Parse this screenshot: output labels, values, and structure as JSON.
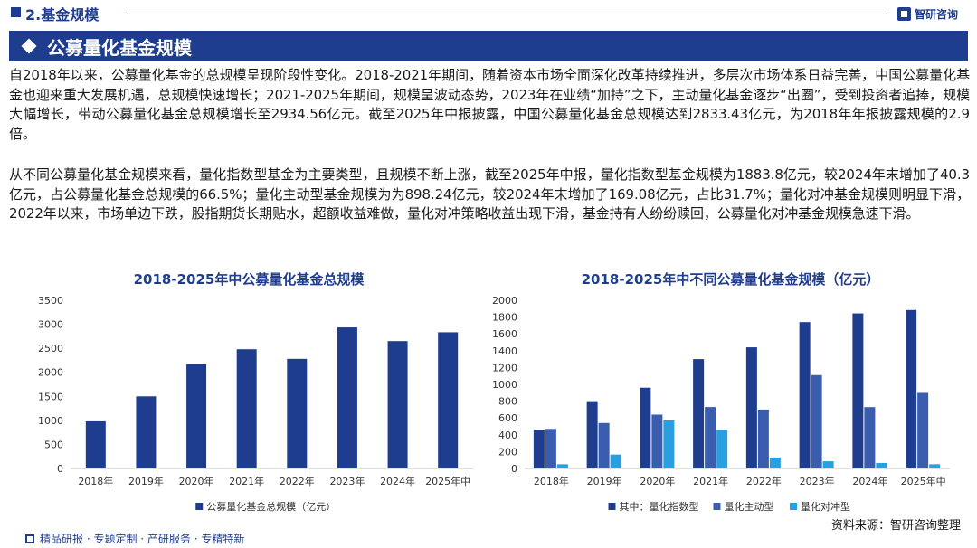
{
  "header": {
    "section_title": "2.基金规模",
    "brand_name": "智研咨询",
    "icons": {
      "brand": "brand-logo-icon",
      "section": "square-bullet-icon"
    }
  },
  "banner": {
    "title": "公募量化基金规模",
    "icon": "diamond-icon"
  },
  "paragraphs": [
    "自2018年以来，公募量化基金的总规模呈现阶段性变化。2018-2021年期间，随着资本市场全面深化改革持续推进，多层次市场体系日益完善，中国公募量化基金也迎来重大发展机遇，总规模快速增长；2021-2025年期间，规模呈波动态势，2023年在业绩“加持”之下，主动量化基金逐步“出圈”，受到投资者追捧，规模大幅增长，带动公募量化基金总规模增长至2934.56亿元。截至2025年中报披露，中国公募量化基金总规模达到2833.43亿元，为2018年年报披露规模的2.9倍。",
    "从不同公募量化基金规模来看，量化指数型基金为主要类型，且规模不断上涨，截至2025年中报，量化指数型基金规模为1883.8亿元，较2024年末增加了40.3亿元，占公募量化基金总规模的66.5%；量化主动型基金规模为为898.24亿元，较2024年末增加了169.08亿元，占比31.7%；量化对冲基金规模则明显下滑，2022年以来，市场单边下跌，股指期货长期贴水，超额收益难做，量化对冲策略收益出现下滑，基金持有人纷纷赎回，公募量化对冲基金规模急速下滑。"
  ],
  "chart_data": [
    {
      "type": "bar",
      "title": "2018-2025年中公募量化基金总规模",
      "categories": [
        "2018年",
        "2019年",
        "2020年",
        "2021年",
        "2022年",
        "2023年",
        "2024年",
        "2025年中"
      ],
      "series": [
        {
          "name": "公募量化基金总规模（亿元）",
          "values": [
            980,
            1500,
            2170,
            2480,
            2280,
            2934.56,
            2650,
            2833.43
          ],
          "color": "#1f3d8f"
        }
      ],
      "ylim": [
        0,
        3500
      ],
      "yticks": [
        0,
        500,
        1000,
        1500,
        2000,
        2500,
        3000,
        3500
      ],
      "grid": false,
      "legend": "bottom"
    },
    {
      "type": "bar",
      "title": "2018-2025年中不同公募量化基金规模（亿元）",
      "categories": [
        "2018年",
        "2019年",
        "2020年",
        "2021年",
        "2022年",
        "2023年",
        "2024年",
        "2025年中"
      ],
      "series": [
        {
          "name": "其中：量化指数型",
          "values": [
            460,
            800,
            960,
            1300,
            1440,
            1740,
            1843.5,
            1883.8
          ],
          "color": "#1f3d8f"
        },
        {
          "name": "量化主动型",
          "values": [
            470,
            540,
            640,
            730,
            700,
            1110,
            729.16,
            898.24
          ],
          "color": "#3a5db0"
        },
        {
          "name": "量化对冲型",
          "values": [
            50,
            165,
            570,
            460,
            130,
            85,
            65,
            50
          ],
          "color": "#2a9fe0"
        }
      ],
      "ylim": [
        0,
        2000
      ],
      "yticks": [
        0,
        200,
        400,
        600,
        800,
        1000,
        1200,
        1400,
        1600,
        1800,
        2000
      ],
      "grid": false,
      "legend": "bottom"
    }
  ],
  "source": "资料来源：智研咨询整理",
  "footer": {
    "text": "精品研报 · 专题定制 · 产研服务 · 专精特新",
    "icon": "report-icon"
  }
}
